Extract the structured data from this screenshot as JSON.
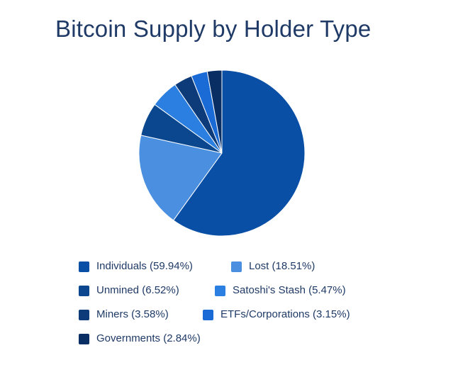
{
  "chart_data": {
    "type": "pie",
    "title": "Bitcoin Supply by Holder Type",
    "series": [
      {
        "name": "Individuals",
        "label": "Individuals (59.94%)",
        "value": 59.94,
        "color": "#0a4fa6"
      },
      {
        "name": "Lost",
        "label": "Lost (18.51%)",
        "value": 18.51,
        "color": "#4a8fe0"
      },
      {
        "name": "Unmined",
        "label": "Unmined (6.52%)",
        "value": 6.52,
        "color": "#0a478f"
      },
      {
        "name": "Satoshi's Stash",
        "label": "Satoshi's Stash (5.47%)",
        "value": 5.47,
        "color": "#2b7fe0"
      },
      {
        "name": "Miners",
        "label": "Miners (3.58%)",
        "value": 3.58,
        "color": "#0d3a78"
      },
      {
        "name": "ETFs/Corporations",
        "label": "ETFs/Corporations (3.15%)",
        "value": 3.15,
        "color": "#1a6bd6"
      },
      {
        "name": "Governments",
        "label": "Governments (2.84%)",
        "value": 2.84,
        "color": "#082e63"
      }
    ],
    "legend_position": "bottom"
  }
}
